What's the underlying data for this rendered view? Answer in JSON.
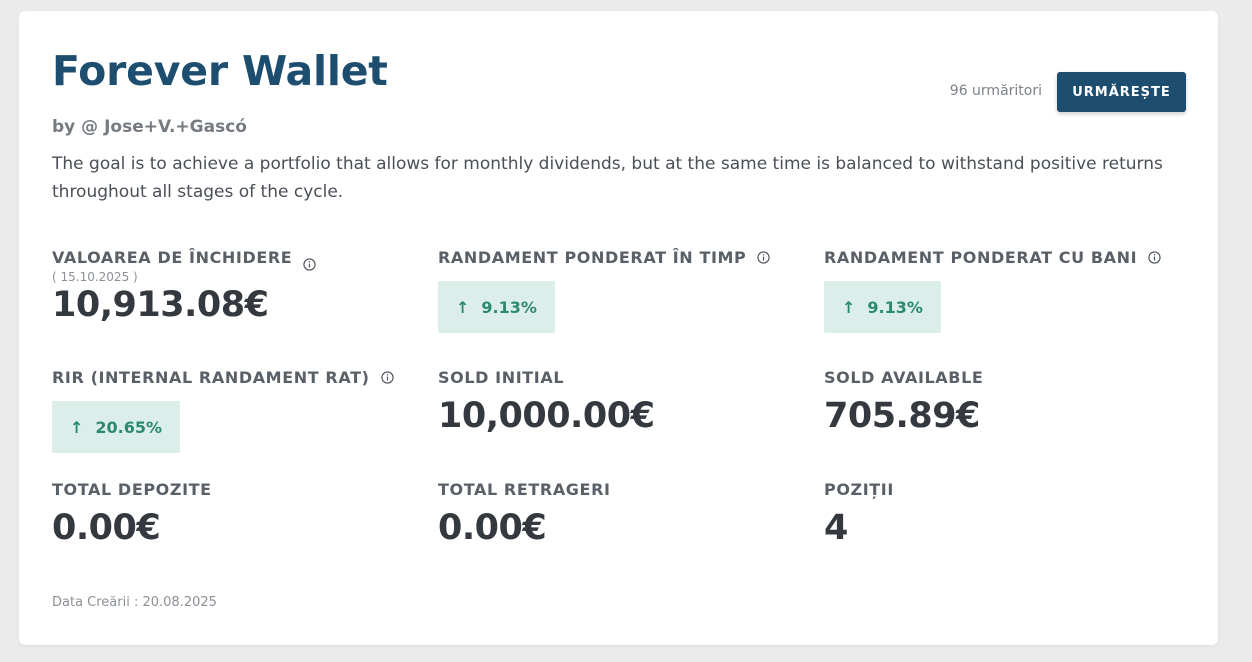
{
  "portfolio": {
    "title": "Forever Wallet",
    "author": "by @ Jose+V.+Gascó",
    "description": "The goal is to achieve a portfolio that allows for monthly dividends, but at the same time is balanced to withstand positive returns throughout all stages of the cycle.",
    "created": "Data Creării : 20.08.2025"
  },
  "follow": {
    "followers": "96 urmăritori",
    "button_label": "URMĂREȘTE"
  },
  "stats": {
    "closing_value": {
      "label": "VALOAREA DE ÎNCHIDERE",
      "date": "( 15.10.2025 )",
      "value": "10,913.08€"
    },
    "twr": {
      "label": "RANDAMENT PONDERAT ÎN TIMP",
      "value": "9.13%",
      "direction": "up"
    },
    "mwr": {
      "label": "RANDAMENT PONDERAT CU BANI",
      "value": "9.13%",
      "direction": "up"
    },
    "irr": {
      "label": "RIR (INTERNAL RANDAMENT RAT)",
      "value": "20.65%",
      "direction": "up"
    },
    "initial_balance": {
      "label": "SOLD INITIAL",
      "value": "10,000.00€"
    },
    "available_balance": {
      "label": "SOLD AVAILABLE",
      "value": "705.89€"
    },
    "total_deposits": {
      "label": "TOTAL DEPOZITE",
      "value": "0.00€"
    },
    "total_withdrawals": {
      "label": "TOTAL RETRAGERI",
      "value": "0.00€"
    },
    "positions": {
      "label": "POZIȚII",
      "value": "4"
    }
  },
  "icons": {
    "info": "info-circle-icon",
    "up": "arrow-up-icon"
  },
  "colors": {
    "brand": "#1d4d6f",
    "positive": "#2b8a6e",
    "positive_bg": "#dceeea"
  }
}
